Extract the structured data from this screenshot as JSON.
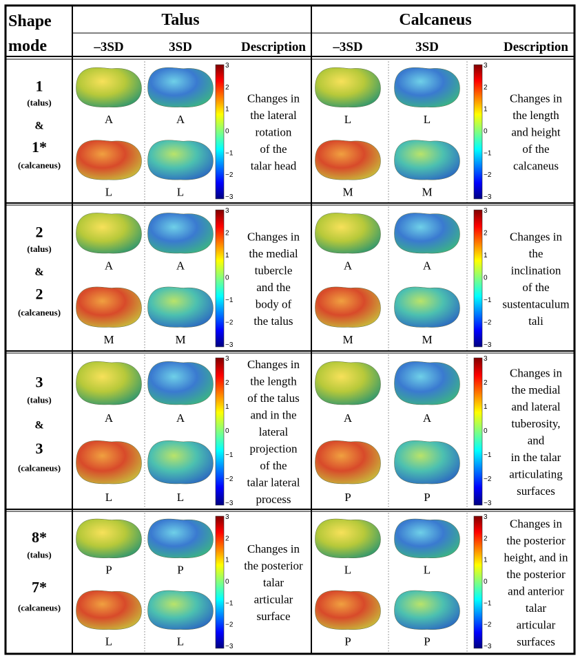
{
  "header": {
    "shape": "Shape",
    "mode": "mode",
    "talus": "Talus",
    "calcaneus": "Calcaneus",
    "talus_cols": [
      "–3SD",
      "3SD",
      "Description"
    ],
    "calcaneus_cols": [
      "–3SD",
      "3SD",
      "Description"
    ]
  },
  "colorbar_ticks": [
    "3",
    "2",
    "1",
    "0",
    "−1",
    "−2",
    "−3"
  ],
  "rows": [
    {
      "mode": [
        "1",
        "(talus)",
        "&",
        "1*",
        "(calcaneus)"
      ],
      "talus": {
        "minus": [
          "A",
          "L"
        ],
        "plus": [
          "A",
          "L"
        ],
        "description": [
          "Changes in",
          "the lateral",
          "rotation",
          "of the",
          "talar head"
        ]
      },
      "calcaneus": {
        "minus": [
          "L",
          "M"
        ],
        "plus": [
          "L",
          "M"
        ],
        "description": [
          "Changes in",
          "the length",
          "and height",
          "of the",
          "calcaneus"
        ]
      }
    },
    {
      "mode": [
        "2",
        "(talus)",
        "&",
        "2",
        "(calcaneus)"
      ],
      "talus": {
        "minus": [
          "A",
          "M"
        ],
        "plus": [
          "A",
          "M"
        ],
        "description": [
          "Changes in",
          "the medial",
          "tubercle",
          "and the",
          "body of",
          "the talus"
        ]
      },
      "calcaneus": {
        "minus": [
          "A",
          "M"
        ],
        "plus": [
          "A",
          "M"
        ],
        "description": [
          "Changes in",
          "the",
          "inclination",
          "of the",
          "sustentaculum",
          "tali"
        ]
      }
    },
    {
      "mode": [
        "3",
        "(talus)",
        "&",
        "3",
        "(calcaneus)"
      ],
      "talus": {
        "minus": [
          "A",
          "L"
        ],
        "plus": [
          "A",
          "L"
        ],
        "description": [
          "Changes in",
          "the length",
          "of the talus",
          "and in the",
          "lateral",
          "projection",
          "of the",
          "talar lateral",
          "process"
        ]
      },
      "calcaneus": {
        "minus": [
          "A",
          "P"
        ],
        "plus": [
          "A",
          "P"
        ],
        "description": [
          "Changes in",
          "the medial",
          "and lateral",
          "tuberosity,",
          "and",
          "in the talar",
          "articulating",
          "surfaces"
        ]
      }
    },
    {
      "mode": [
        "8*",
        "(talus)",
        "7*",
        "(calcaneus)"
      ],
      "talus": {
        "minus": [
          "P",
          "L"
        ],
        "plus": [
          "P",
          "L"
        ],
        "description": [
          "Changes in",
          "the posterior",
          "talar",
          "articular",
          "surface"
        ]
      },
      "calcaneus": {
        "minus": [
          "L",
          "P"
        ],
        "plus": [
          "L",
          "P"
        ],
        "description": [
          "Changes in",
          "the posterior",
          "height, and in",
          "the posterior",
          "and anterior",
          "talar",
          "articular",
          "surfaces"
        ]
      }
    }
  ]
}
